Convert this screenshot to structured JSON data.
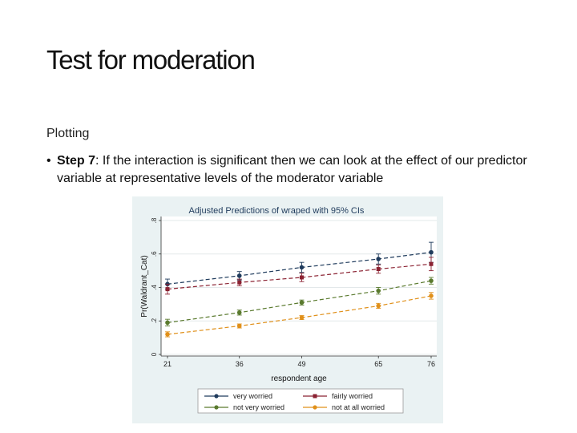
{
  "slide": {
    "title": "Test for moderation",
    "subheading": "Plotting",
    "bullet": {
      "step_label": "Step 7",
      "text": ": If the interaction is significant then we can look at the effect of our predictor variable at representative levels of the moderator variable"
    }
  },
  "chart_data": {
    "type": "line",
    "title": "Adjusted Predictions of wraped with 95% CIs",
    "xlabel": "respondent age",
    "ylabel": "Pr(Waldrant_Cat)",
    "x": [
      21,
      36,
      49,
      65,
      76
    ],
    "xticks": [
      "21",
      "36",
      "49",
      "65",
      "76"
    ],
    "yticks": [
      0,
      0.2,
      0.4,
      0.6,
      0.8
    ],
    "ytick_labels": [
      "0",
      ".2",
      ".4",
      ".6",
      ".8"
    ],
    "ylim": [
      0,
      0.8
    ],
    "grid": true,
    "legend_position": "bottom",
    "series": [
      {
        "name": "very worried",
        "color": "#1f3b5c",
        "values": [
          0.42,
          0.47,
          0.52,
          0.57,
          0.61
        ],
        "ci": [
          0.03,
          0.025,
          0.03,
          0.03,
          0.06
        ]
      },
      {
        "name": "fairly worried",
        "color": "#8b2232",
        "values": [
          0.39,
          0.43,
          0.46,
          0.51,
          0.54
        ],
        "ci": [
          0.03,
          0.02,
          0.025,
          0.025,
          0.04
        ]
      },
      {
        "name": "not very worried",
        "color": "#5a7a2e",
        "values": [
          0.19,
          0.25,
          0.31,
          0.38,
          0.44
        ],
        "ci": [
          0.02,
          0.015,
          0.015,
          0.02,
          0.02
        ]
      },
      {
        "name": "not at all worried",
        "color": "#e0901a",
        "values": [
          0.12,
          0.17,
          0.22,
          0.29,
          0.35
        ],
        "ci": [
          0.015,
          0.012,
          0.012,
          0.015,
          0.02
        ]
      }
    ]
  }
}
